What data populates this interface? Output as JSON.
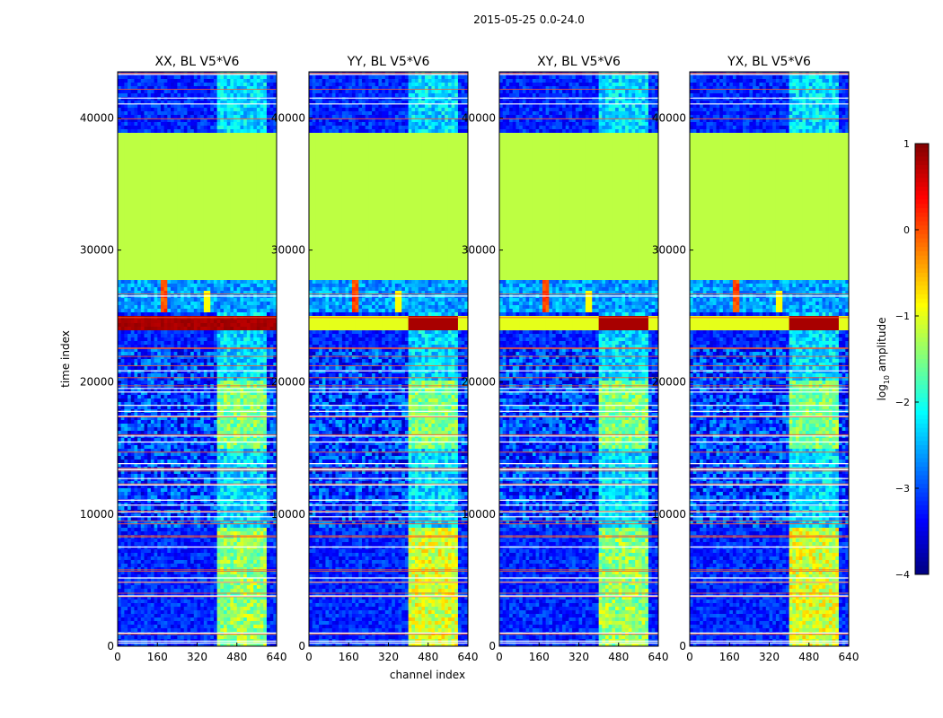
{
  "figure_title": "2015-05-25 0.0-24.0",
  "chart_data": {
    "type": "heatmap",
    "title": "2015-05-25 0.0-24.0",
    "xlabel": "channel index",
    "ylabel": "time index",
    "xlim": [
      0,
      640
    ],
    "ylim": [
      0,
      43500
    ],
    "xticks": [
      0,
      160,
      320,
      480,
      640
    ],
    "yticks": [
      0,
      10000,
      20000,
      30000,
      40000
    ],
    "panels": [
      {
        "title": "XX, BL V5*V6",
        "pol": "XX",
        "baseline": "V5*V6"
      },
      {
        "title": "YY, BL V5*V6",
        "pol": "YY",
        "baseline": "V5*V6"
      },
      {
        "title": "XY, BL V5*V6",
        "pol": "XY",
        "baseline": "V5*V6"
      },
      {
        "title": "YX, BL V5*V6",
        "pol": "YX",
        "baseline": "V5*V6"
      }
    ],
    "colorbar": {
      "label": "log10 amplitude",
      "label_main": "log",
      "label_sub": "10",
      "label_rest": " amplitude",
      "min": -4,
      "max": 1,
      "ticks": [
        1,
        0,
        -1,
        -2,
        -3,
        -4
      ],
      "colormap": "jet"
    },
    "flagged_region": {
      "t_start": 27800,
      "t_end": 38800,
      "value": -1.2
    },
    "bright_band": {
      "t_start": 24000,
      "t_end": 25000,
      "value": 0.8
    },
    "rfi_channel_range": [
      400,
      600
    ]
  }
}
